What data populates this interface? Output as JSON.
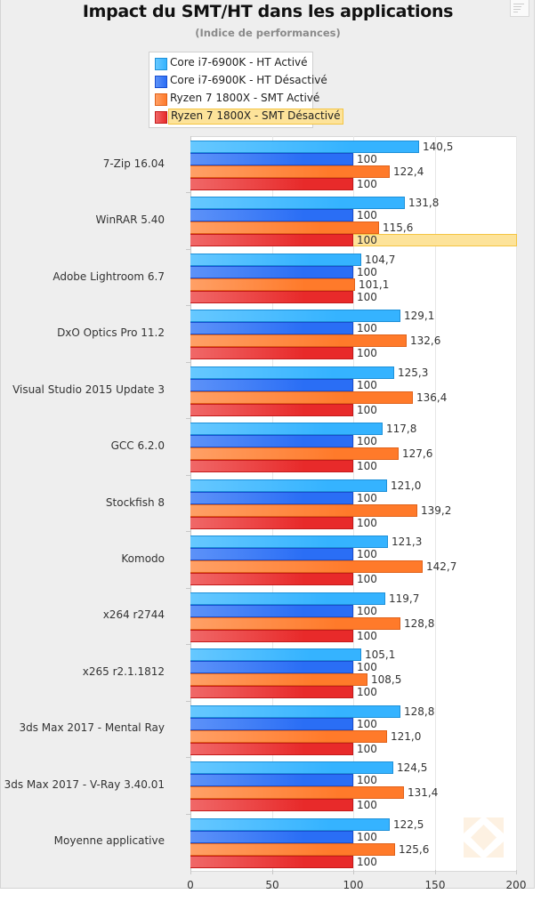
{
  "chart_data": {
    "type": "bar",
    "orientation": "horizontal",
    "title": "Impact du SMT/HT dans les applications",
    "subtitle": "(Indice de performances)",
    "xlabel": "",
    "ylabel": "",
    "xlim": [
      0,
      200
    ],
    "x_ticks": [
      "0",
      "50",
      "100",
      "150",
      "200"
    ],
    "grid": true,
    "legend_position": "top-center",
    "categories": [
      "7-Zip 16.04",
      "WinRAR 5.40",
      "Adobe Lightroom 6.7",
      "DxO Optics Pro 11.2",
      "Visual Studio 2015 Update 3",
      "GCC 6.2.0",
      "Stockfish 8",
      "Komodo",
      "x264 r2744",
      "x265 r2.1.1812",
      "3ds Max 2017 - Mental Ray",
      "3ds Max 2017 - V-Ray 3.40.01",
      "Moyenne applicative"
    ],
    "series": [
      {
        "name": "Core i7-6900K - HT Activé",
        "color": "#35b3ff",
        "light": "#66c8ff",
        "border": "#1e90d8",
        "values": [
          140.5,
          131.8,
          104.7,
          129.1,
          125.3,
          117.8,
          121.0,
          121.3,
          119.7,
          105.1,
          128.8,
          124.5,
          122.5
        ],
        "labels": [
          "140,5",
          "131,8",
          "104,7",
          "129,1",
          "125,3",
          "117,8",
          "121,0",
          "121,3",
          "119,7",
          "105,1",
          "128,8",
          "124,5",
          "122,5"
        ]
      },
      {
        "name": "Core i7-6900K - HT Désactivé",
        "color": "#2a6ef5",
        "light": "#5d92f8",
        "border": "#1a4ed0",
        "values": [
          100,
          100,
          100,
          100,
          100,
          100,
          100,
          100,
          100,
          100,
          100,
          100,
          100
        ],
        "labels": [
          "100",
          "100",
          "100",
          "100",
          "100",
          "100",
          "100",
          "100",
          "100",
          "100",
          "100",
          "100",
          "100"
        ]
      },
      {
        "name": "Ryzen 7 1800X - SMT Activé",
        "color": "#ff7a2a",
        "light": "#ffa066",
        "border": "#e0621a",
        "values": [
          122.4,
          115.6,
          101.1,
          132.6,
          136.4,
          127.6,
          139.2,
          142.7,
          128.8,
          108.5,
          121.0,
          131.4,
          125.6
        ],
        "labels": [
          "122,4",
          "115,6",
          "101,1",
          "132,6",
          "136,4",
          "127,6",
          "139,2",
          "142,7",
          "128,8",
          "108,5",
          "121,0",
          "131,4",
          "125,6"
        ]
      },
      {
        "name": "Ryzen 7 1800X - SMT Désactivé",
        "color": "#e82a2a",
        "light": "#f06868",
        "border": "#c41a1a",
        "values": [
          100,
          100,
          100,
          100,
          100,
          100,
          100,
          100,
          100,
          100,
          100,
          100,
          100
        ],
        "labels": [
          "100",
          "100",
          "100",
          "100",
          "100",
          "100",
          "100",
          "100",
          "100",
          "100",
          "100",
          "100",
          "100"
        ]
      }
    ],
    "highlighted": {
      "series_index": 3,
      "category_index": 1
    },
    "highlighted_legend_index": 3
  }
}
